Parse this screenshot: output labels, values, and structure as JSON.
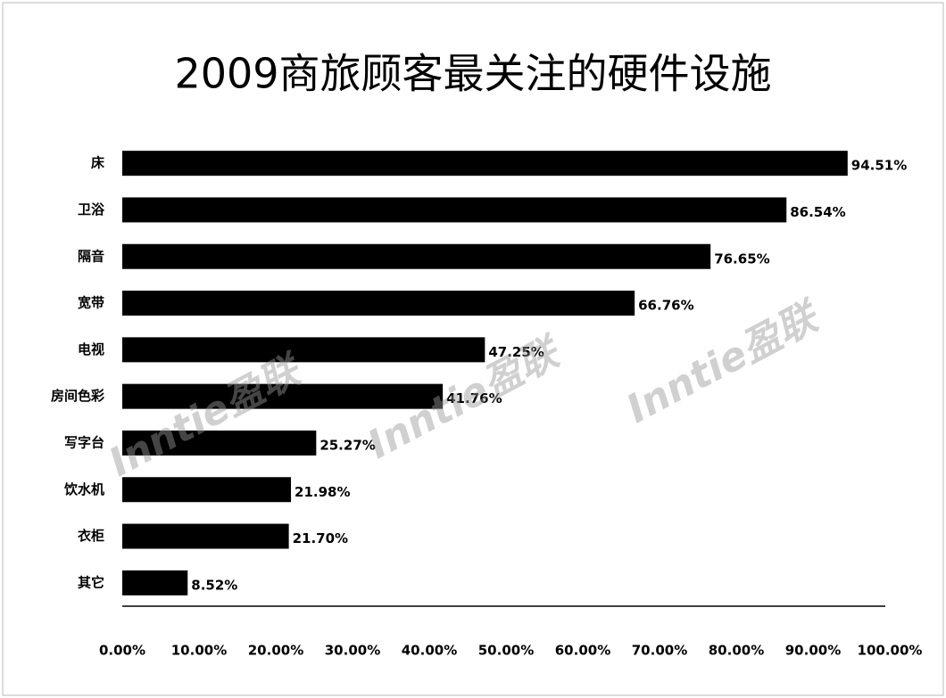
{
  "chart_data": {
    "type": "barh",
    "title": "2009商旅顾客最关注的硬件设施",
    "categories": [
      "床",
      "卫浴",
      "隔音",
      "宽带",
      "电视",
      "房间色彩",
      "写字台",
      "饮水机",
      "衣柜",
      "其它"
    ],
    "values": [
      94.51,
      86.54,
      76.65,
      66.76,
      47.25,
      41.76,
      25.27,
      21.98,
      21.7,
      8.52
    ],
    "value_labels": [
      "94.51%",
      "86.54%",
      "76.65%",
      "66.76%",
      "47.25%",
      "41.76%",
      "25.27%",
      "21.98%",
      "21.70%",
      "8.52%"
    ],
    "color": "#000000",
    "xlim": [
      0,
      100
    ],
    "xticks": [
      {
        "value": 0,
        "label": "0.00%"
      },
      {
        "value": 10,
        "label": "10.00%"
      },
      {
        "value": 20,
        "label": "20.00%"
      },
      {
        "value": 30,
        "label": "30.00%"
      },
      {
        "value": 40,
        "label": "40.00%"
      },
      {
        "value": 50,
        "label": "50.00%"
      },
      {
        "value": 60,
        "label": "60.00%"
      },
      {
        "value": 70,
        "label": "70.00%"
      },
      {
        "value": 80,
        "label": "80.00%"
      },
      {
        "value": 90,
        "label": "90.00%"
      },
      {
        "value": 100,
        "label": "100.00%"
      }
    ],
    "watermark": "Inntie盈联"
  }
}
